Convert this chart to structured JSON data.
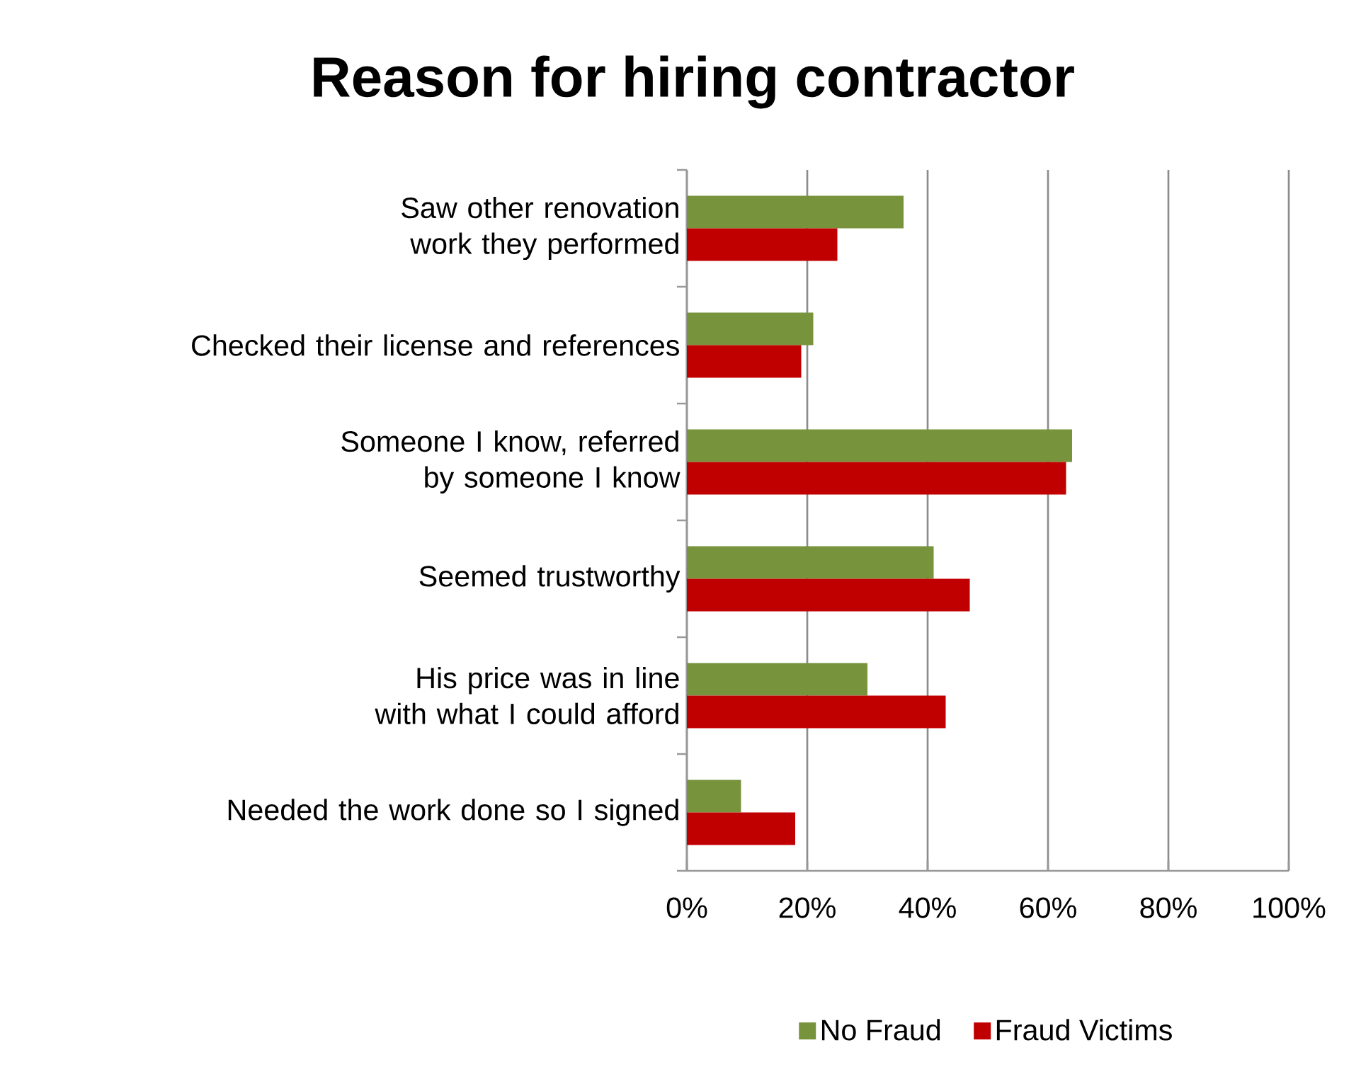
{
  "chart_data": {
    "type": "bar",
    "orientation": "horizontal",
    "title": "Reason for hiring contractor",
    "categories": [
      "Saw other renovation work they performed",
      "Checked their license and references",
      "Someone I know, referred by someone I know",
      "Seemed trustworthy",
      "His price was in line with what I could afford",
      "Needed the work done so I signed"
    ],
    "series": [
      {
        "name": "No Fraud",
        "color": "#77933c",
        "values": [
          36,
          21,
          64,
          41,
          30,
          9
        ]
      },
      {
        "name": "Fraud Victims",
        "color": "#c00000",
        "values": [
          25,
          19,
          63,
          47,
          43,
          18
        ]
      }
    ],
    "xlim": [
      0,
      100
    ],
    "xticks": [
      {
        "value": 0,
        "label": "0%"
      },
      {
        "value": 20,
        "label": "20%"
      },
      {
        "value": 40,
        "label": "40%"
      },
      {
        "value": 60,
        "label": "60%"
      },
      {
        "value": 80,
        "label": "80%"
      },
      {
        "value": 100,
        "label": "100%"
      }
    ],
    "grid": "x",
    "legend": "bottom"
  }
}
